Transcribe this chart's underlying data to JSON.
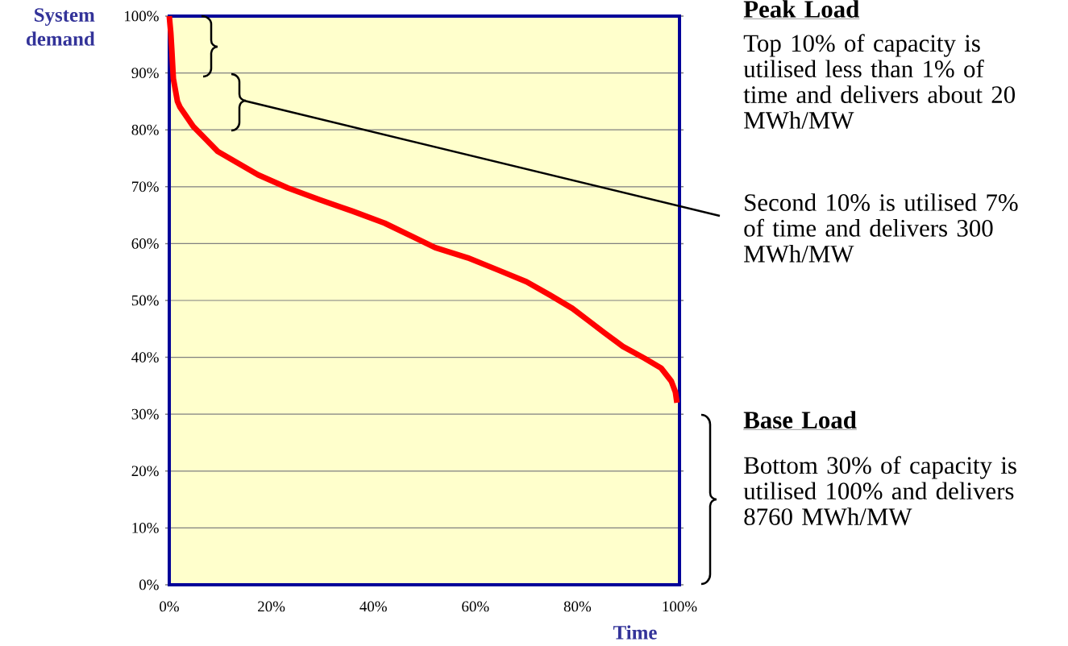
{
  "chart_data": {
    "type": "line",
    "xlabel": "Time",
    "ylabel": "System demand",
    "x": [
      0,
      0.3,
      0.5,
      0.8,
      1.6,
      2.1,
      4.7,
      9.5,
      17.4,
      23.2,
      29.5,
      35.9,
      42.2,
      52.1,
      58.5,
      64.3,
      70.0,
      74.7,
      79.0,
      82.1,
      85.3,
      88.9,
      93.2,
      96.4,
      98.4,
      99.2,
      99.5
    ],
    "values": [
      100,
      97,
      94,
      89,
      85,
      84,
      80.6,
      76.2,
      72.1,
      69.8,
      67.7,
      65.7,
      63.6,
      59.3,
      57.5,
      55.4,
      53.3,
      50.9,
      48.6,
      46.5,
      44.3,
      41.9,
      39.8,
      38.1,
      35.8,
      33.9,
      32
    ],
    "color": "#ff0000",
    "line_style": "solid",
    "marker": "none",
    "grid": "y",
    "xlim": [
      0,
      100
    ],
    "ylim": [
      0,
      100
    ],
    "xticks": [
      {
        "value": 0,
        "label": "0%"
      },
      {
        "value": 20,
        "label": "20%"
      },
      {
        "value": 40,
        "label": "40%"
      },
      {
        "value": 60,
        "label": "60%"
      },
      {
        "value": 80,
        "label": "80%"
      },
      {
        "value": 100,
        "label": "100%"
      }
    ],
    "yticks": [
      {
        "value": 0,
        "label": "0%"
      },
      {
        "value": 10,
        "label": "10%"
      },
      {
        "value": 20,
        "label": "20%"
      },
      {
        "value": 30,
        "label": "30%"
      },
      {
        "value": 40,
        "label": "40%"
      },
      {
        "value": 50,
        "label": "50%"
      },
      {
        "value": 60,
        "label": "60%"
      },
      {
        "value": 70,
        "label": "70%"
      },
      {
        "value": 80,
        "label": "80%"
      },
      {
        "value": 90,
        "label": "90%"
      },
      {
        "value": 100,
        "label": "100%"
      }
    ],
    "annotations": [
      "Peak Load",
      "Top 10% of capacity is utilised less than 1% of time and delivers about 20 MWh/MW",
      "Second 10% is utilised 7% of time and delivers 300 MWh/MW",
      "Base Load",
      "Bottom 30% of capacity is utilised 100% and delivers 8760 MWh/MW"
    ]
  }
}
